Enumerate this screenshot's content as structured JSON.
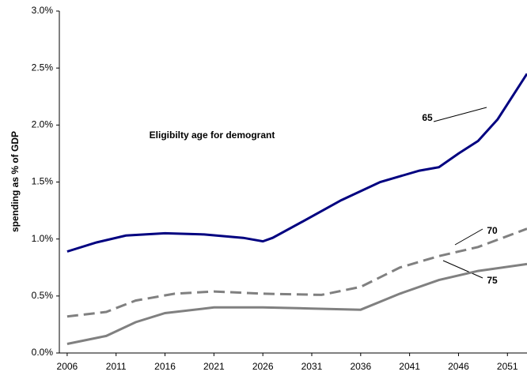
{
  "chart_data": {
    "type": "line",
    "y_label": "spending as % of GDP",
    "annotation": "Eligibilty age for demogrant",
    "xlim": [
      2005.2,
      2053
    ],
    "xticks": [
      2006,
      2011,
      2016,
      2021,
      2026,
      2031,
      2036,
      2041,
      2046,
      2051
    ],
    "ylim": [
      0,
      3.0
    ],
    "yticks": [
      {
        "value": 0,
        "label": "0.0%"
      },
      {
        "value": 0.5,
        "label": "0.5%"
      },
      {
        "value": 1.0,
        "label": "1.0%"
      },
      {
        "value": 1.5,
        "label": "1.5%"
      },
      {
        "value": 2.0,
        "label": "2.0%"
      },
      {
        "value": 2.5,
        "label": "2.5%"
      },
      {
        "value": 3.0,
        "label": "3.0%"
      }
    ],
    "series": [
      {
        "name": "65",
        "color": "#000080",
        "dash": false,
        "x": [
          2006,
          2009,
          2012,
          2016,
          2020,
          2024,
          2026,
          2027,
          2030,
          2034,
          2038,
          2042,
          2044,
          2046,
          2048,
          2050,
          2053
        ],
        "values": [
          0.89,
          0.97,
          1.03,
          1.05,
          1.04,
          1.01,
          0.98,
          1.01,
          1.15,
          1.34,
          1.5,
          1.6,
          1.63,
          1.75,
          1.86,
          2.05,
          2.45
        ]
      },
      {
        "name": "70",
        "color": "#808080",
        "dash": true,
        "x": [
          2006,
          2010,
          2013,
          2017,
          2021,
          2026,
          2032,
          2036,
          2040,
          2044,
          2048,
          2053
        ],
        "values": [
          0.32,
          0.36,
          0.46,
          0.52,
          0.54,
          0.52,
          0.51,
          0.58,
          0.75,
          0.85,
          0.93,
          1.09
        ]
      },
      {
        "name": "75",
        "color": "#808080",
        "dash": false,
        "x": [
          2006,
          2010,
          2013,
          2016,
          2021,
          2026,
          2031,
          2036,
          2040,
          2044,
          2048,
          2053
        ],
        "values": [
          0.08,
          0.15,
          0.27,
          0.35,
          0.4,
          0.4,
          0.39,
          0.38,
          0.52,
          0.64,
          0.72,
          0.78
        ]
      }
    ]
  }
}
